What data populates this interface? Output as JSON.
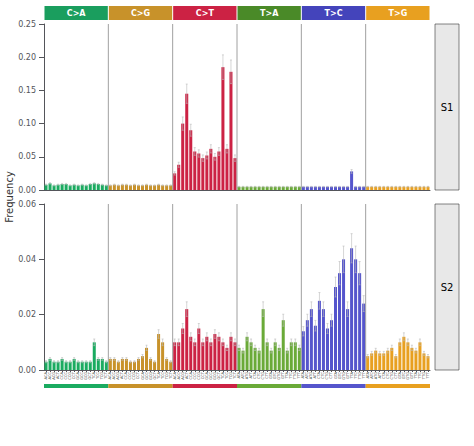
{
  "chart_data": [
    {
      "type": "bar",
      "title": "S1",
      "ylabel": "Frequency",
      "annotations": [
        {
          "text": "C>A",
          "color": "#1a9e5e"
        },
        {
          "text": "C>G",
          "color": "#c8922a"
        },
        {
          "text": "C>T",
          "color": "#cc2244"
        },
        {
          "text": "T>A",
          "color": "#4a8a28"
        },
        {
          "text": "T>C",
          "color": "#4444bb"
        },
        {
          "text": "T>G",
          "color": "#e8a020"
        }
      ],
      "categories": [
        "ACA",
        "ACC",
        "ACG",
        "ACT",
        "CCA",
        "CCC",
        "CCG",
        "CCT",
        "GCA",
        "GCC",
        "GCG",
        "GCT",
        "TCA",
        "TCC",
        "TCG",
        "TCT",
        "ACA",
        "ACC",
        "ACG",
        "ACT",
        "CCA",
        "CCC",
        "CCG",
        "CCT",
        "GCA",
        "GCC",
        "GCG",
        "GCT",
        "TCA",
        "TCC",
        "TCG",
        "TCT",
        "ACA",
        "ACC",
        "ACG",
        "ACT",
        "CCA",
        "CCC",
        "CCG",
        "CCT",
        "GCA",
        "GCC",
        "GCG",
        "GCT",
        "TCA",
        "TCC",
        "TCG",
        "TCT",
        "ATA",
        "ATC",
        "ATG",
        "ATT",
        "CTA",
        "CTC",
        "CTG",
        "CTT",
        "GTA",
        "GTC",
        "GTG",
        "GTT",
        "TTA",
        "TTC",
        "TTG",
        "TTT",
        "ATA",
        "ATC",
        "ATG",
        "ATT",
        "CTA",
        "CTC",
        "CTG",
        "CTT",
        "GTA",
        "GTC",
        "GTG",
        "GTT",
        "TTA",
        "TTC",
        "TTG",
        "TTT",
        "ATA",
        "ATC",
        "ATG",
        "ATT",
        "CTA",
        "CTC",
        "CTG",
        "CTT",
        "GTA",
        "GTC",
        "GTG",
        "GTT",
        "TTA",
        "TTC",
        "TTG",
        "TTT"
      ],
      "values": [
        0.008,
        0.01,
        0.007,
        0.008,
        0.009,
        0.009,
        0.007,
        0.008,
        0.007,
        0.008,
        0.007,
        0.009,
        0.01,
        0.009,
        0.008,
        0.007,
        0.007,
        0.008,
        0.007,
        0.008,
        0.008,
        0.007,
        0.008,
        0.007,
        0.007,
        0.008,
        0.007,
        0.007,
        0.008,
        0.007,
        0.007,
        0.007,
        0.025,
        0.038,
        0.1,
        0.145,
        0.09,
        0.058,
        0.055,
        0.048,
        0.052,
        0.062,
        0.05,
        0.058,
        0.185,
        0.062,
        0.178,
        0.048,
        0.005,
        0.005,
        0.005,
        0.005,
        0.005,
        0.005,
        0.005,
        0.005,
        0.005,
        0.005,
        0.005,
        0.005,
        0.005,
        0.005,
        0.005,
        0.005,
        0.005,
        0.005,
        0.005,
        0.005,
        0.005,
        0.005,
        0.005,
        0.005,
        0.005,
        0.005,
        0.005,
        0.005,
        0.028,
        0.005,
        0.005,
        0.005,
        0.005,
        0.005,
        0.005,
        0.005,
        0.005,
        0.005,
        0.005,
        0.005,
        0.005,
        0.005,
        0.005,
        0.005,
        0.005,
        0.005,
        0.005,
        0.005
      ],
      "errors": [
        0.0008,
        0.001,
        0.0007,
        0.0008,
        0.0009,
        0.0009,
        0.0007,
        0.0008,
        0.0007,
        0.0008,
        0.0007,
        0.0009,
        0.001,
        0.0009,
        0.0008,
        0.0007,
        0.0007,
        0.0008,
        0.0007,
        0.0008,
        0.0008,
        0.0007,
        0.0008,
        0.0007,
        0.0007,
        0.0008,
        0.0007,
        0.0007,
        0.0008,
        0.0007,
        0.0007,
        0.0007,
        0.0025,
        0.0038,
        0.01,
        0.0145,
        0.009,
        0.0058,
        0.0055,
        0.0048,
        0.0052,
        0.0062,
        0.005,
        0.0058,
        0.0185,
        0.0062,
        0.0178,
        0.0048,
        0.0005,
        0.0005,
        0.0005,
        0.0005,
        0.0005,
        0.0005,
        0.0005,
        0.0005,
        0.0005,
        0.0005,
        0.0005,
        0.0005,
        0.0005,
        0.0005,
        0.0005,
        0.0005,
        0.0005,
        0.0005,
        0.0005,
        0.0005,
        0.0005,
        0.0005,
        0.0005,
        0.0005,
        0.0005,
        0.0005,
        0.0005,
        0.0005,
        0.0028,
        0.0005,
        0.0005,
        0.0005,
        0.0005,
        0.0005,
        0.0005,
        0.0005,
        0.0005,
        0.0005,
        0.0005,
        0.0005,
        0.0005,
        0.0005,
        0.0005,
        0.0005,
        0.0005,
        0.0005,
        0.0005,
        0.0005
      ],
      "colors": [
        "#1aab60",
        "#1aab60",
        "#1aab60",
        "#1aab60",
        "#1aab60",
        "#1aab60",
        "#1aab60",
        "#1aab60",
        "#1aab60",
        "#1aab60",
        "#1aab60",
        "#1aab60",
        "#1aab60",
        "#1aab60",
        "#1aab60",
        "#1aab60",
        "#c8922a",
        "#c8922a",
        "#c8922a",
        "#c8922a",
        "#c8922a",
        "#c8922a",
        "#c8922a",
        "#c8922a",
        "#c8922a",
        "#c8922a",
        "#c8922a",
        "#c8922a",
        "#c8922a",
        "#c8922a",
        "#c8922a",
        "#c8922a",
        "#cc2244",
        "#cc2244",
        "#cc2244",
        "#cc2244",
        "#cc2244",
        "#cc2244",
        "#cc2244",
        "#cc2244",
        "#cc2244",
        "#cc2244",
        "#cc2244",
        "#cc2244",
        "#cc2244",
        "#cc2244",
        "#cc2244",
        "#cc2244",
        "#6aaa38",
        "#6aaa38",
        "#6aaa38",
        "#6aaa38",
        "#6aaa38",
        "#6aaa38",
        "#6aaa38",
        "#6aaa38",
        "#6aaa38",
        "#6aaa38",
        "#6aaa38",
        "#6aaa38",
        "#6aaa38",
        "#6aaa38",
        "#6aaa38",
        "#6aaa38",
        "#5555cc",
        "#5555cc",
        "#5555cc",
        "#5555cc",
        "#5555cc",
        "#5555cc",
        "#5555cc",
        "#5555cc",
        "#5555cc",
        "#5555cc",
        "#5555cc",
        "#5555cc",
        "#5555cc",
        "#5555cc",
        "#5555cc",
        "#5555cc",
        "#e8a020",
        "#e8a020",
        "#e8a020",
        "#e8a020",
        "#e8a020",
        "#e8a020",
        "#e8a020",
        "#e8a020",
        "#e8a020",
        "#e8a020",
        "#e8a020",
        "#e8a020",
        "#e8a020",
        "#e8a020",
        "#e8a020",
        "#e8a020"
      ],
      "ylim": [
        0,
        0.25
      ],
      "yticks": [
        {
          "value": 0,
          "label": "0.00"
        },
        0.05,
        {
          "value": 0.1,
          "label": "0.10"
        },
        0.15,
        {
          "value": 0.2,
          "label": "0.20"
        },
        0.25
      ],
      "tick_labels": "y",
      "grid": false
    },
    {
      "type": "bar",
      "title": "S2",
      "categories": [
        "ACA",
        "ACC",
        "ACG",
        "ACT",
        "CCA",
        "CCC",
        "CCG",
        "CCT",
        "GCA",
        "GCC",
        "GCG",
        "GCT",
        "TCA",
        "TCC",
        "TCG",
        "TCT",
        "ACA",
        "ACC",
        "ACG",
        "ACT",
        "CCA",
        "CCC",
        "CCG",
        "CCT",
        "GCA",
        "GCC",
        "GCG",
        "GCT",
        "TCA",
        "TCC",
        "TCG",
        "TCT",
        "ACA",
        "ACC",
        "ACG",
        "ACT",
        "CCA",
        "CCC",
        "CCG",
        "CCT",
        "GCA",
        "GCC",
        "GCG",
        "GCT",
        "TCA",
        "TCC",
        "TCG",
        "TCT",
        "ATA",
        "ATC",
        "ATG",
        "ATT",
        "CTA",
        "CTC",
        "CTG",
        "CTT",
        "GTA",
        "GTC",
        "GTG",
        "GTT",
        "TTA",
        "TTC",
        "TTG",
        "TTT",
        "ATA",
        "ATC",
        "ATG",
        "ATT",
        "CTA",
        "CTC",
        "CTG",
        "CTT",
        "GTA",
        "GTC",
        "GTG",
        "GTT",
        "TTA",
        "TTC",
        "TTG",
        "TTT",
        "ATA",
        "ATC",
        "ATG",
        "ATT",
        "CTA",
        "CTC",
        "CTG",
        "CTT",
        "GTA",
        "GTC",
        "GTG",
        "GTT",
        "TTA",
        "TTC",
        "TTG",
        "TTT"
      ],
      "values": [
        0.003,
        0.004,
        0.003,
        0.003,
        0.004,
        0.003,
        0.003,
        0.004,
        0.003,
        0.003,
        0.003,
        0.003,
        0.01,
        0.004,
        0.004,
        0.003,
        0.004,
        0.004,
        0.003,
        0.004,
        0.004,
        0.003,
        0.003,
        0.004,
        0.005,
        0.008,
        0.004,
        0.003,
        0.013,
        0.01,
        0.004,
        0.003,
        0.01,
        0.01,
        0.015,
        0.022,
        0.012,
        0.01,
        0.015,
        0.01,
        0.012,
        0.01,
        0.013,
        0.012,
        0.01,
        0.008,
        0.012,
        0.01,
        0.008,
        0.007,
        0.012,
        0.01,
        0.008,
        0.007,
        0.022,
        0.01,
        0.007,
        0.01,
        0.008,
        0.018,
        0.007,
        0.01,
        0.01,
        0.008,
        0.014,
        0.018,
        0.022,
        0.016,
        0.025,
        0.022,
        0.015,
        0.018,
        0.03,
        0.035,
        0.04,
        0.022,
        0.044,
        0.04,
        0.035,
        0.024,
        0.005,
        0.006,
        0.007,
        0.006,
        0.006,
        0.007,
        0.008,
        0.005,
        0.01,
        0.012,
        0.01,
        0.008,
        0.007,
        0.01,
        0.006,
        0.005
      ],
      "errors": [
        0.00036,
        0.00048,
        0.00036,
        0.00036,
        0.00048,
        0.00036,
        0.00036,
        0.00048,
        0.00036,
        0.00036,
        0.00036,
        0.00036,
        0.0012,
        0.00048,
        0.00048,
        0.00036,
        0.00048,
        0.00048,
        0.00036,
        0.00048,
        0.00048,
        0.00036,
        0.00036,
        0.00048,
        0.0006,
        0.00096,
        0.00048,
        0.00036,
        0.00156,
        0.0012,
        0.00048,
        0.00036,
        0.0012,
        0.0012,
        0.0018,
        0.00264,
        0.00144,
        0.0012,
        0.0018,
        0.0012,
        0.00144,
        0.0012,
        0.00156,
        0.00144,
        0.0012,
        0.00096,
        0.00144,
        0.0012,
        0.00096,
        0.00084,
        0.00144,
        0.0012,
        0.00096,
        0.00084,
        0.00264,
        0.0012,
        0.00084,
        0.0012,
        0.00096,
        0.00216,
        0.00084,
        0.0012,
        0.0012,
        0.00096,
        0.00168,
        0.00216,
        0.00264,
        0.00192,
        0.003,
        0.00264,
        0.0018,
        0.00216,
        0.0036,
        0.0042,
        0.0048,
        0.00264,
        0.00528,
        0.0048,
        0.0042,
        0.00288,
        0.0006,
        0.00072,
        0.00084,
        0.00072,
        0.00072,
        0.00084,
        0.00096,
        0.0006,
        0.0012,
        0.00144,
        0.0012,
        0.00096,
        0.00084,
        0.0012,
        0.00072,
        0.0006
      ],
      "colors": [
        "#1aab60",
        "#1aab60",
        "#1aab60",
        "#1aab60",
        "#1aab60",
        "#1aab60",
        "#1aab60",
        "#1aab60",
        "#1aab60",
        "#1aab60",
        "#1aab60",
        "#1aab60",
        "#1aab60",
        "#1aab60",
        "#1aab60",
        "#1aab60",
        "#c8922a",
        "#c8922a",
        "#c8922a",
        "#c8922a",
        "#c8922a",
        "#c8922a",
        "#c8922a",
        "#c8922a",
        "#c8922a",
        "#c8922a",
        "#c8922a",
        "#c8922a",
        "#c8922a",
        "#c8922a",
        "#c8922a",
        "#c8922a",
        "#cc2244",
        "#cc2244",
        "#cc2244",
        "#cc2244",
        "#cc2244",
        "#cc2244",
        "#cc2244",
        "#cc2244",
        "#cc2244",
        "#cc2244",
        "#cc2244",
        "#cc2244",
        "#cc2244",
        "#cc2244",
        "#cc2244",
        "#cc2244",
        "#6aaa38",
        "#6aaa38",
        "#6aaa38",
        "#6aaa38",
        "#6aaa38",
        "#6aaa38",
        "#6aaa38",
        "#6aaa38",
        "#6aaa38",
        "#6aaa38",
        "#6aaa38",
        "#6aaa38",
        "#6aaa38",
        "#6aaa38",
        "#6aaa38",
        "#6aaa38",
        "#5555cc",
        "#5555cc",
        "#5555cc",
        "#5555cc",
        "#5555cc",
        "#5555cc",
        "#5555cc",
        "#5555cc",
        "#5555cc",
        "#5555cc",
        "#5555cc",
        "#5555cc",
        "#5555cc",
        "#5555cc",
        "#5555cc",
        "#5555cc",
        "#e8a020",
        "#e8a020",
        "#e8a020",
        "#e8a020",
        "#e8a020",
        "#e8a020",
        "#e8a020",
        "#e8a020",
        "#e8a020",
        "#e8a020",
        "#e8a020",
        "#e8a020",
        "#e8a020",
        "#e8a020",
        "#e8a020",
        "#e8a020"
      ],
      "ylim": [
        0,
        0.06
      ],
      "yticks": [
        {
          "value": 0,
          "label": "0.00"
        },
        0.02,
        0.04,
        0.06
      ],
      "grid": false
    }
  ]
}
